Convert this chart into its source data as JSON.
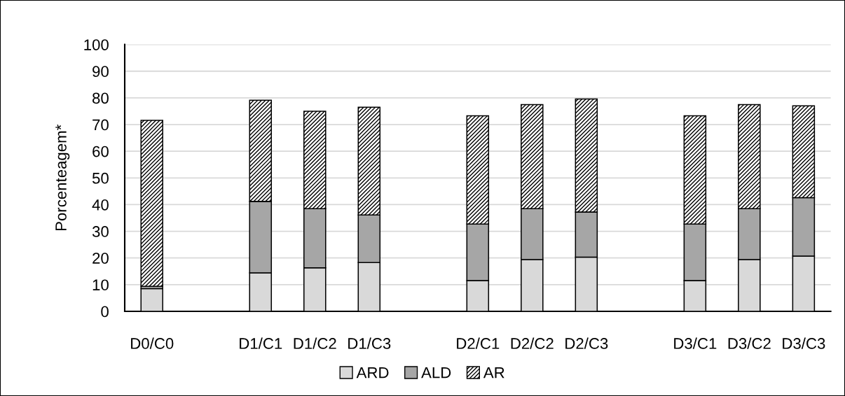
{
  "chart_data": {
    "type": "bar",
    "stacked": true,
    "ylabel": "Porcenteagem*",
    "categories": [
      "D0/C0",
      null,
      "D1/C1",
      "D1/C2",
      "D1/C3",
      null,
      "D2/C1",
      "D2/C2",
      "D2/C3",
      null,
      "D3/C1",
      "D3/C2",
      "D3/C3"
    ],
    "series": [
      {
        "name": "ARD",
        "color": "#d9d9d9",
        "values": [
          8.5,
          null,
          14.4,
          16.3,
          18.3,
          null,
          11.5,
          19.4,
          20.3,
          null,
          11.5,
          19.4,
          20.7
        ]
      },
      {
        "name": "ALD",
        "color": "#a6a6a6",
        "values": [
          0.9,
          null,
          26.8,
          22.2,
          17.8,
          null,
          21.2,
          19.1,
          16.9,
          null,
          21.2,
          19.1,
          21.9
        ]
      },
      {
        "name": "AR",
        "color": "#000000",
        "values": [
          62.2,
          null,
          37.9,
          36.5,
          40.4,
          null,
          40.6,
          39.0,
          42.4,
          null,
          40.6,
          39.0,
          34.4
        ]
      }
    ],
    "ylim": [
      0,
      100
    ],
    "yticks": [
      0,
      10,
      20,
      30,
      40,
      50,
      60,
      70,
      80,
      90,
      100
    ],
    "grid": "y",
    "legend": "bottom"
  }
}
